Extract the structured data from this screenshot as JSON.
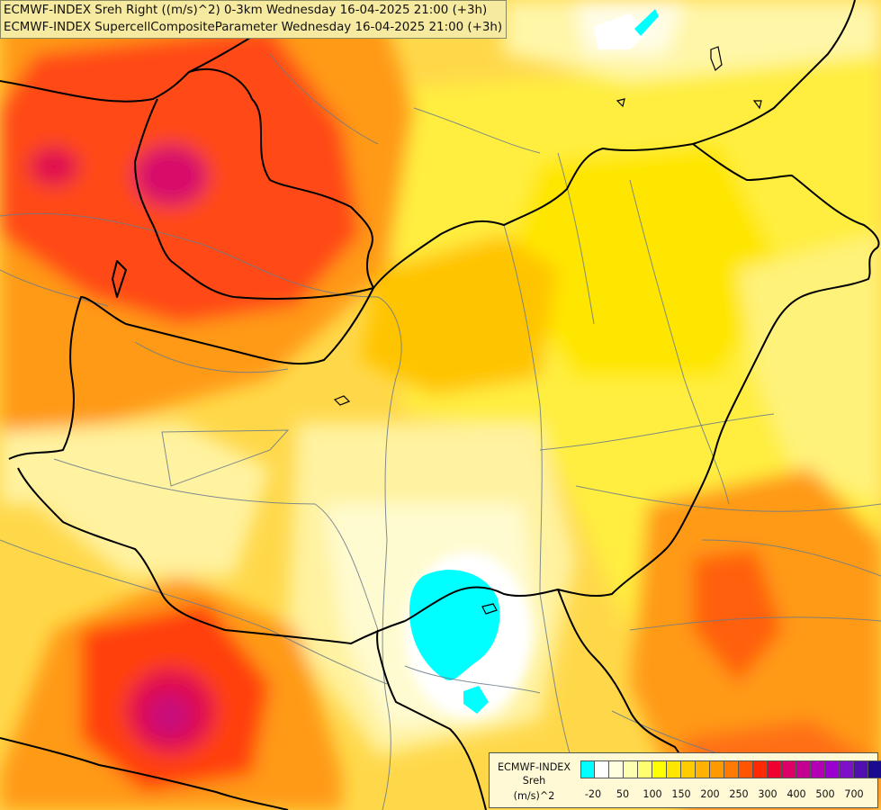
{
  "title": {
    "line1": "ECMWF-INDEX Sreh Right ((m/s)^2) 0-3km Wednesday 16-04-2025 21:00 (+3h)",
    "line2": "ECMWF-INDEX SupercellCompositeParameter Wednesday 16-04-2025 21:00 (+3h)"
  },
  "legend": {
    "line1": "ECMWF-INDEX",
    "line2": "Sreh",
    "line3": "(m/s)^2",
    "colors": [
      "#00ffff",
      "#ffffff",
      "#ffffe0",
      "#ffffb0",
      "#ffff70",
      "#ffff00",
      "#ffe600",
      "#ffcc00",
      "#ffb300",
      "#ff9900",
      "#ff7a00",
      "#ff5500",
      "#ff2a00",
      "#f00030",
      "#dd0066",
      "#c40090",
      "#b400b4",
      "#9a00d2",
      "#7d10c8",
      "#5010b0",
      "#1a0a90"
    ],
    "ticks": [
      "-20",
      "50",
      "100",
      "150",
      "200",
      "250",
      "300",
      "400",
      "500",
      "700"
    ]
  },
  "map": {
    "fill_colors": [
      "#ffe680",
      "#ffd24a",
      "#ffb000",
      "#ff7a1a",
      "#ff4a1a",
      "#ff2030",
      "#d01060",
      "#ffff40",
      "#ffff99",
      "#fffbe0",
      "#00ffff",
      "#ffffff"
    ],
    "border_color": "#000000",
    "river_color": "#6a7a8a"
  }
}
